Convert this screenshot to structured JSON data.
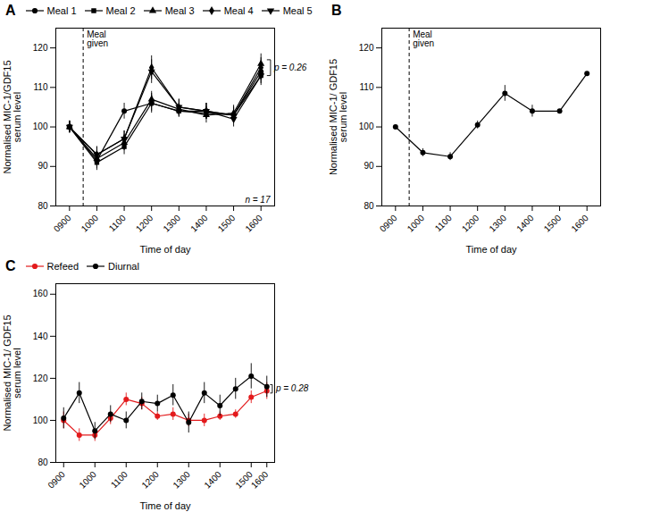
{
  "chart_data": [
    {
      "type": "line",
      "title": "A",
      "categories": [
        "0900",
        "1000",
        "1100",
        "1200",
        "1300",
        "1400",
        "1500",
        "1600"
      ],
      "xlabel": "Time of day",
      "ylabel": "Normalised MIC-1/GDF15\nserum level",
      "ylim": [
        80,
        125
      ],
      "yticks": [
        80,
        90,
        100,
        110,
        120
      ],
      "legend": "top",
      "series": [
        {
          "name": "Meal 1",
          "color": "#000000",
          "marker": "circle",
          "values": [
            100,
            91.5,
            104,
            106,
            104,
            104,
            103,
            114
          ],
          "yerr": [
            1.5,
            2,
            2,
            2.5,
            1.5,
            2,
            2,
            2
          ]
        },
        {
          "name": "Meal 2",
          "color": "#000000",
          "marker": "square",
          "values": [
            100,
            91,
            95,
            106,
            104,
            103.5,
            103,
            113
          ],
          "yerr": [
            1.5,
            2,
            2,
            2,
            1.5,
            1.5,
            1.5,
            2
          ]
        },
        {
          "name": "Meal 3",
          "color": "#000000",
          "marker": "triangle",
          "values": [
            100,
            92,
            96,
            107,
            104.5,
            103,
            103.5,
            116
          ],
          "yerr": [
            1.5,
            2,
            2,
            2,
            1.5,
            2,
            2,
            2.5
          ]
        },
        {
          "name": "Meal 4",
          "color": "#000000",
          "marker": "diamond",
          "values": [
            100,
            93,
            97,
            115,
            105,
            104,
            103,
            115
          ],
          "yerr": [
            1.5,
            2,
            2,
            3,
            2,
            2,
            2,
            2.5
          ]
        },
        {
          "name": "Meal 5",
          "color": "#000000",
          "marker": "triangle-down",
          "values": [
            100,
            93,
            97,
            114,
            105,
            104,
            102,
            113
          ],
          "yerr": [
            1.5,
            2,
            2,
            3,
            2,
            2,
            2,
            2.5
          ]
        }
      ],
      "annotations": [
        {
          "type": "vline",
          "x": 0.5,
          "line_style": "dashed",
          "text": "Meal\ngiven"
        },
        {
          "type": "text",
          "text": "n = 17"
        },
        {
          "type": "bracket",
          "y_bottom": 113,
          "y_top": 117,
          "text": "p = 0.26"
        }
      ]
    },
    {
      "type": "line",
      "title": "B",
      "categories": [
        "0900",
        "1000",
        "1100",
        "1200",
        "1300",
        "1400",
        "1500",
        "1600"
      ],
      "xlabel": "Time of day",
      "ylabel": "Normalised MIC-1/ GDF15\nserum level",
      "ylim": [
        80,
        125
      ],
      "yticks": [
        80,
        90,
        100,
        110,
        120
      ],
      "series": [
        {
          "color": "#000000",
          "marker": "circle",
          "values": [
            100,
            93.5,
            92.5,
            100.5,
            108.5,
            104,
            104,
            113.5
          ],
          "yerr": [
            0,
            1,
            1,
            1,
            2,
            1.5,
            0,
            0
          ]
        }
      ],
      "annotations": [
        {
          "type": "vline",
          "x": 0.5,
          "line_style": "dashed",
          "text": "Meal\ngiven"
        }
      ]
    },
    {
      "type": "line",
      "title": "C",
      "categories": [
        "0900",
        null,
        "1000",
        null,
        "1100",
        null,
        "1200",
        null,
        "1300",
        null,
        "1400",
        null,
        "1500",
        "1600"
      ],
      "xlabel": "Time of day",
      "ylabel": "Normalised MIC-1/ GDF15\nserum level",
      "ylim": [
        80,
        165
      ],
      "yticks": [
        80,
        100,
        120,
        140,
        160
      ],
      "legend": "top",
      "series": [
        {
          "name": "Refeed",
          "color": "#e31a1c",
          "marker": "circle",
          "values": [
            100,
            93,
            93,
            101,
            110,
            108,
            102,
            103,
            100,
            100,
            102,
            103,
            111,
            114
          ],
          "yerr": [
            4,
            3,
            3,
            3,
            3,
            3,
            2,
            3,
            3,
            3,
            2,
            2,
            3,
            4
          ]
        },
        {
          "name": "Diurnal",
          "color": "#000000",
          "marker": "circle",
          "values": [
            101,
            113,
            95,
            103,
            100,
            109,
            108,
            112,
            99,
            113,
            107,
            115,
            121,
            116
          ],
          "yerr": [
            5,
            5,
            4,
            4,
            4,
            4,
            4,
            5,
            5,
            5,
            5,
            5,
            6,
            5
          ]
        }
      ],
      "annotations": [
        {
          "type": "bracket",
          "y_bottom": 113,
          "y_top": 117,
          "text": "p = 0.28"
        }
      ]
    }
  ]
}
